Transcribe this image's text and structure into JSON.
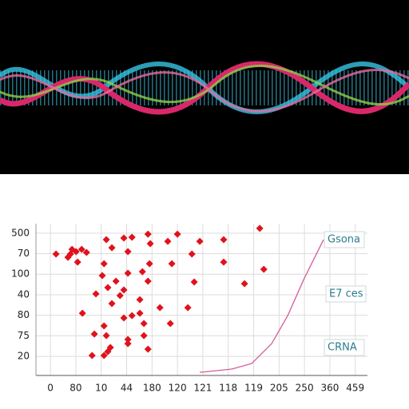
{
  "chart_data": {
    "type": "scatter",
    "x": [
      0.22,
      0.69,
      0.85,
      1.01,
      1.23,
      1.42,
      0.79,
      1.07,
      2.2,
      2.89,
      3.21,
      3.84,
      4.62,
      5.0,
      5.88,
      6.82,
      8.24,
      2.42,
      3.05,
      3.93,
      4.78,
      5.57,
      6.82,
      8.4,
      7.64,
      5.66,
      3.9,
      2.11,
      2.04,
      3.05,
      3.84,
      2.26,
      2.74,
      3.52,
      4.31,
      5.41,
      1.79,
      2.42,
      3.21,
      1.26,
      4.72,
      3.68,
      2.11,
      2.89,
      1.73,
      2.2,
      3.68,
      3.05,
      3.84,
      1.64,
      2.26,
      2.11,
      3.05,
      2.36,
      3.52,
      2.89,
      2.58,
      3.62
    ],
    "values": [
      4.98,
      4.82,
      5.21,
      5.1,
      5.21,
      5.06,
      4.98,
      4.59,
      5.68,
      5.76,
      5.8,
      5.95,
      5.6,
      5.95,
      5.6,
      5.68,
      6.23,
      5.29,
      5.1,
      5.49,
      4.51,
      4.98,
      4.59,
      4.24,
      3.54,
      3.62,
      4.51,
      4.51,
      3.93,
      4.05,
      3.66,
      3.35,
      2.96,
      2.76,
      2.37,
      2.37,
      3.04,
      2.57,
      1.98,
      2.1,
      1.6,
      1.6,
      1.48,
      1.87,
      1.09,
      1.01,
      1.01,
      0.82,
      0.35,
      0.04,
      0.23,
      0.04,
      0.62,
      0.43,
      2.1,
      3.23,
      3.66,
      4.12
    ],
    "color": "#e0121c",
    "line": {
      "x": [
        5.88,
        7.14,
        7.92,
        8.71,
        9.34,
        9.97,
        10.75
      ],
      "values": [
        -0.78,
        -0.62,
        -0.35,
        0.62,
        1.98,
        3.74,
        5.68
      ],
      "color": "#d45a9a"
    },
    "xlim": [
      -0.57,
      12.48
    ],
    "ylim": [
      -0.93,
      6.46
    ],
    "xticks": [
      {
        "value": 0,
        "label": "0"
      },
      {
        "value": 1,
        "label": "80"
      },
      {
        "value": 2,
        "label": "10"
      },
      {
        "value": 3,
        "label": "44"
      },
      {
        "value": 4,
        "label": "180"
      },
      {
        "value": 5,
        "label": "120"
      },
      {
        "value": 6,
        "label": "121"
      },
      {
        "value": 7,
        "label": "118"
      },
      {
        "value": 8,
        "label": "119"
      },
      {
        "value": 9,
        "label": "205"
      },
      {
        "value": 10,
        "label": "250"
      },
      {
        "value": 11,
        "label": "360"
      },
      {
        "value": 12,
        "label": "459"
      }
    ],
    "yticks": [
      {
        "value": 0,
        "label": "20"
      },
      {
        "value": 1,
        "label": "75"
      },
      {
        "value": 2,
        "label": "80"
      },
      {
        "value": 3,
        "label": "40"
      },
      {
        "value": 4,
        "label": "100"
      },
      {
        "value": 5,
        "label": "70"
      },
      {
        "value": 6,
        "label": "500"
      }
    ],
    "grid": true,
    "annotations": [
      "Gsona",
      "E7 ces",
      "CRNA"
    ]
  }
}
